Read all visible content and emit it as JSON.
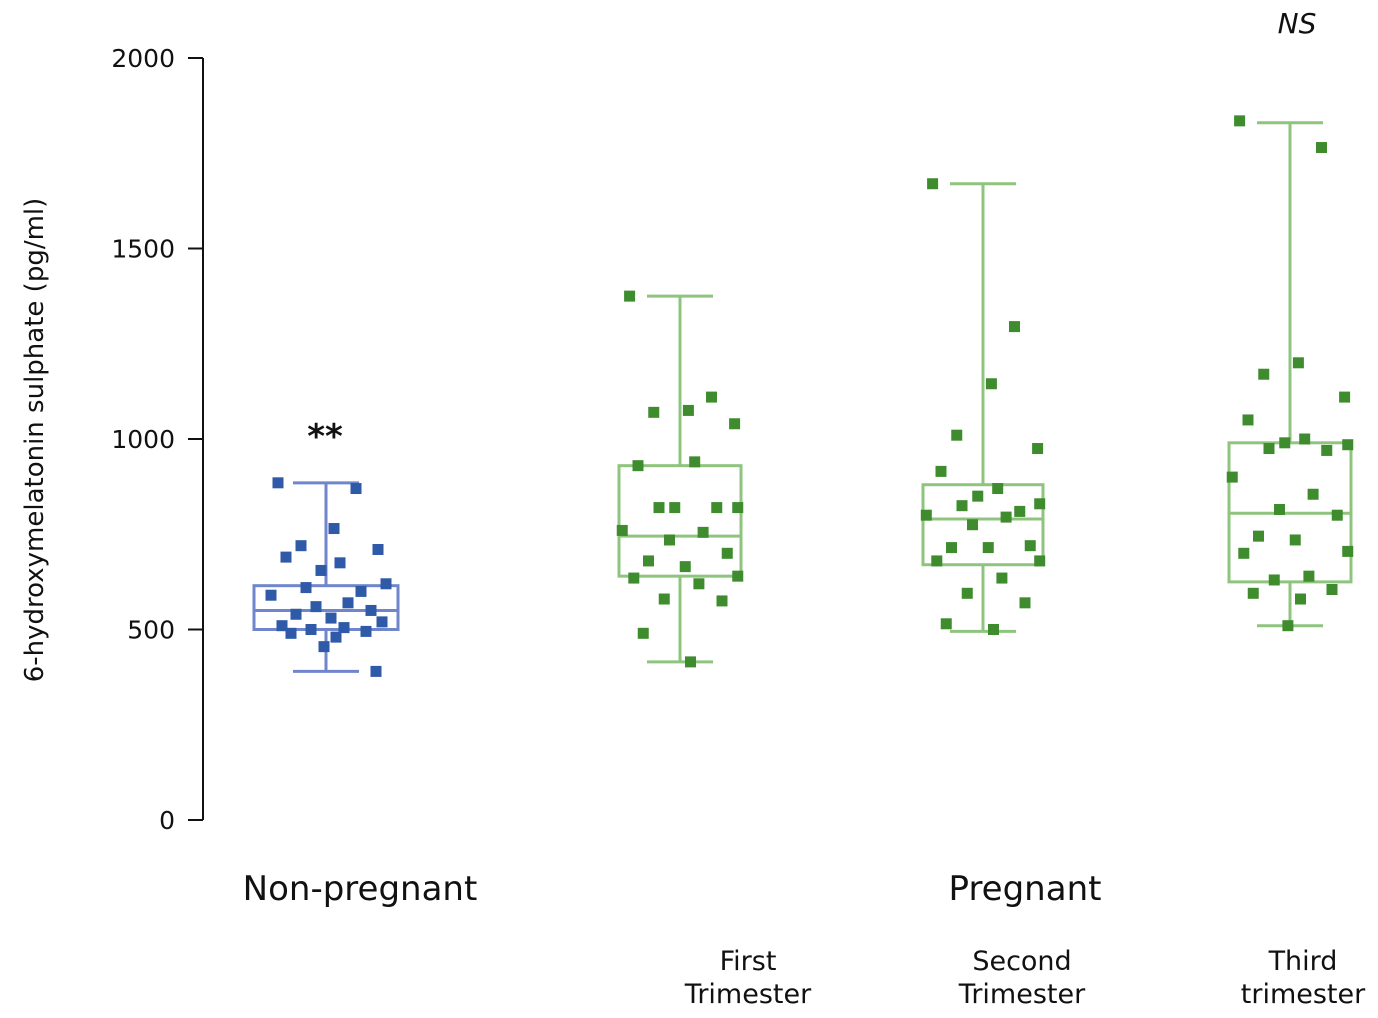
{
  "chart_data": {
    "type": "box",
    "ylabel": "6-hydroxymelatonin sulphate  (pg/ml)",
    "ylim": [
      0,
      2000
    ],
    "yticks": [
      0,
      500,
      1000,
      1500,
      2000
    ],
    "group_labels": [
      {
        "id": "non-pregnant",
        "label": "Non-pregnant"
      },
      {
        "id": "pregnant",
        "label": "Pregnant"
      }
    ],
    "significance": [
      {
        "group": "Non-pregnant",
        "text": "**"
      },
      {
        "group": "Third trimester",
        "text": "NS"
      }
    ],
    "series": [
      {
        "name": "Non-pregnant",
        "label_lines": [],
        "color": "#2e5aa8",
        "box_color": "#6f86cc",
        "whisker_low": 390,
        "q1": 500,
        "median": 550,
        "q3": 615,
        "whisker_high": 885,
        "points": [
          885,
          870,
          765,
          720,
          710,
          690,
          675,
          655,
          620,
          610,
          600,
          590,
          570,
          560,
          550,
          540,
          530,
          520,
          510,
          505,
          500,
          495,
          490,
          480,
          455,
          390
        ]
      },
      {
        "name": "First Trimester",
        "label_lines": [
          "First",
          "Trimester"
        ],
        "color": "#3e8c2e",
        "box_color": "#8fc47f",
        "whisker_low": 415,
        "q1": 640,
        "median": 745,
        "q3": 930,
        "whisker_high": 1375,
        "points": [
          1375,
          1110,
          1075,
          1070,
          1040,
          930,
          940,
          820,
          820,
          820,
          820,
          760,
          755,
          735,
          700,
          680,
          665,
          640,
          635,
          620,
          580,
          575,
          490,
          415
        ]
      },
      {
        "name": "Second Trimester",
        "label_lines": [
          "Second",
          "Trimester"
        ],
        "color": "#3e8c2e",
        "box_color": "#8fc47f",
        "whisker_low": 495,
        "q1": 670,
        "median": 790,
        "q3": 880,
        "whisker_high": 1670,
        "points": [
          1670,
          1295,
          1145,
          1010,
          975,
          915,
          870,
          850,
          830,
          825,
          810,
          800,
          795,
          775,
          720,
          715,
          715,
          680,
          680,
          635,
          595,
          570,
          515,
          500
        ]
      },
      {
        "name": "Third trimester",
        "label_lines": [
          "Third",
          "trimester"
        ],
        "color": "#3e8c2e",
        "box_color": "#8fc47f",
        "whisker_low": 510,
        "q1": 625,
        "median": 805,
        "q3": 990,
        "whisker_high": 1830,
        "points": [
          1835,
          1765,
          1200,
          1170,
          1110,
          1050,
          1000,
          990,
          985,
          975,
          970,
          900,
          855,
          815,
          800,
          745,
          735,
          705,
          700,
          640,
          630,
          605,
          595,
          580,
          510
        ]
      }
    ]
  }
}
